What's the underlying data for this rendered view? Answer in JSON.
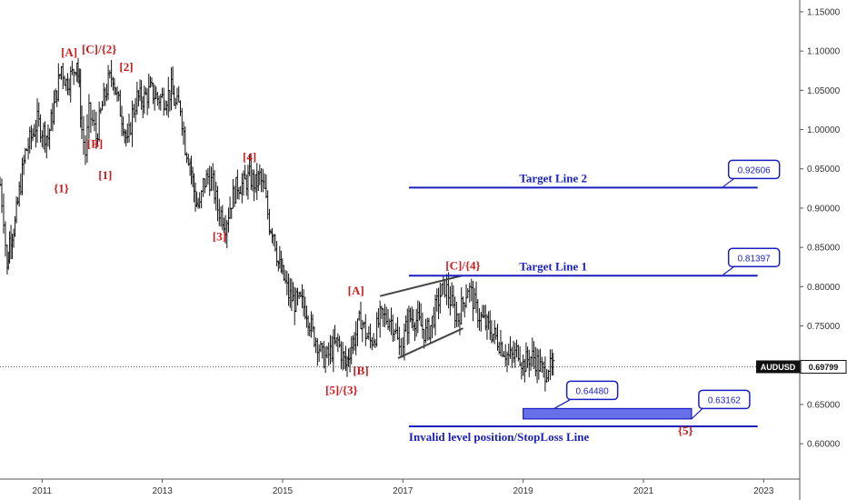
{
  "chart_data": {
    "type": "line",
    "symbol": "AUDUSD",
    "last_price": "0.69799",
    "x_ticks": [
      "2011",
      "2013",
      "2015",
      "2017",
      "2019",
      "2021",
      "2023"
    ],
    "x_tick_values": [
      2011,
      2013,
      2015,
      2017,
      2019,
      2021,
      2023
    ],
    "xlim": [
      2010.3,
      2023.6
    ],
    "y_ticks": [
      "1.15000",
      "1.10000",
      "1.05000",
      "1.00000",
      "0.95000",
      "0.90000",
      "0.85000",
      "0.80000",
      "0.75000",
      "0.70000",
      "0.65000",
      "0.60000"
    ],
    "y_tick_values": [
      1.15,
      1.1,
      1.05,
      1.0,
      0.95,
      0.9,
      0.85,
      0.8,
      0.75,
      0.7,
      0.65,
      0.6
    ],
    "ylim": [
      0.555,
      1.165
    ],
    "grid": false,
    "series": [
      {
        "type": "ohlc-weekly",
        "points": [
          [
            2010.3,
            0.93
          ],
          [
            2010.36,
            0.89
          ],
          [
            2010.42,
            0.82
          ],
          [
            2010.46,
            0.86
          ],
          [
            2010.55,
            0.88
          ],
          [
            2010.62,
            0.92
          ],
          [
            2010.72,
            0.97
          ],
          [
            2010.82,
            0.99
          ],
          [
            2010.92,
            1.01
          ],
          [
            2011.0,
            1.0
          ],
          [
            2011.1,
            0.99
          ],
          [
            2011.2,
            1.03
          ],
          [
            2011.32,
            1.08
          ],
          [
            2011.4,
            1.06
          ],
          [
            2011.5,
            1.07
          ],
          [
            2011.58,
            1.09
          ],
          [
            2011.62,
            1.05
          ],
          [
            2011.66,
            1.0
          ],
          [
            2011.72,
            0.97
          ],
          [
            2011.78,
            1.02
          ],
          [
            2011.84,
            1.01
          ],
          [
            2011.9,
            0.99
          ],
          [
            2011.95,
            1.01
          ],
          [
            2012.0,
            1.03
          ],
          [
            2012.1,
            1.06
          ],
          [
            2012.18,
            1.07
          ],
          [
            2012.25,
            1.04
          ],
          [
            2012.35,
            1.01
          ],
          [
            2012.42,
            0.98
          ],
          [
            2012.5,
            1.02
          ],
          [
            2012.58,
            1.04
          ],
          [
            2012.7,
            1.04
          ],
          [
            2012.8,
            1.05
          ],
          [
            2012.92,
            1.04
          ],
          [
            2013.05,
            1.04
          ],
          [
            2013.15,
            1.05
          ],
          [
            2013.22,
            1.03
          ],
          [
            2013.3,
            1.03
          ],
          [
            2013.38,
            0.98
          ],
          [
            2013.46,
            0.96
          ],
          [
            2013.55,
            0.91
          ],
          [
            2013.62,
            0.9
          ],
          [
            2013.68,
            0.93
          ],
          [
            2013.76,
            0.94
          ],
          [
            2013.84,
            0.93
          ],
          [
            2013.92,
            0.9
          ],
          [
            2014.0,
            0.89
          ],
          [
            2014.05,
            0.88
          ],
          [
            2014.15,
            0.91
          ],
          [
            2014.25,
            0.93
          ],
          [
            2014.35,
            0.93
          ],
          [
            2014.45,
            0.94
          ],
          [
            2014.55,
            0.93
          ],
          [
            2014.62,
            0.94
          ],
          [
            2014.7,
            0.92
          ],
          [
            2014.78,
            0.88
          ],
          [
            2014.85,
            0.87
          ],
          [
            2014.93,
            0.83
          ],
          [
            2015.02,
            0.81
          ],
          [
            2015.1,
            0.79
          ],
          [
            2015.2,
            0.78
          ],
          [
            2015.3,
            0.78
          ],
          [
            2015.4,
            0.77
          ],
          [
            2015.5,
            0.74
          ],
          [
            2015.58,
            0.73
          ],
          [
            2015.66,
            0.71
          ],
          [
            2015.74,
            0.71
          ],
          [
            2015.82,
            0.72
          ],
          [
            2015.92,
            0.73
          ],
          [
            2016.0,
            0.71
          ],
          [
            2016.05,
            0.7
          ],
          [
            2016.12,
            0.72
          ],
          [
            2016.22,
            0.74
          ],
          [
            2016.3,
            0.76
          ],
          [
            2016.38,
            0.74
          ],
          [
            2016.46,
            0.73
          ],
          [
            2016.54,
            0.74
          ],
          [
            2016.62,
            0.76
          ],
          [
            2016.7,
            0.76
          ],
          [
            2016.78,
            0.76
          ],
          [
            2016.86,
            0.75
          ],
          [
            2016.94,
            0.72
          ],
          [
            2017.0,
            0.73
          ],
          [
            2017.1,
            0.76
          ],
          [
            2017.2,
            0.76
          ],
          [
            2017.3,
            0.75
          ],
          [
            2017.38,
            0.74
          ],
          [
            2017.46,
            0.75
          ],
          [
            2017.54,
            0.77
          ],
          [
            2017.62,
            0.79
          ],
          [
            2017.7,
            0.8
          ],
          [
            2017.76,
            0.79
          ],
          [
            2017.84,
            0.77
          ],
          [
            2017.92,
            0.76
          ],
          [
            2018.0,
            0.78
          ],
          [
            2018.08,
            0.8
          ],
          [
            2018.14,
            0.79
          ],
          [
            2018.22,
            0.77
          ],
          [
            2018.3,
            0.76
          ],
          [
            2018.4,
            0.75
          ],
          [
            2018.5,
            0.74
          ],
          [
            2018.6,
            0.73
          ],
          [
            2018.68,
            0.72
          ],
          [
            2018.76,
            0.71
          ],
          [
            2018.84,
            0.71
          ],
          [
            2018.92,
            0.72
          ],
          [
            2019.0,
            0.7
          ],
          [
            2019.1,
            0.71
          ],
          [
            2019.18,
            0.71
          ],
          [
            2019.26,
            0.7
          ],
          [
            2019.34,
            0.69
          ],
          [
            2019.42,
            0.7
          ],
          [
            2019.48,
            0.69
          ],
          [
            2019.52,
            0.698
          ]
        ]
      }
    ],
    "wave_labels": [
      {
        "text": "[A]",
        "x": 2011.45,
        "y": 1.093
      },
      {
        "text": "[C]/{2}",
        "x": 2011.95,
        "y": 1.097
      },
      {
        "text": "[2]",
        "x": 2012.4,
        "y": 1.075
      },
      {
        "text": "[B]",
        "x": 2011.88,
        "y": 0.977
      },
      {
        "text": "{1}",
        "x": 2011.32,
        "y": 0.92
      },
      {
        "text": "[1]",
        "x": 2012.05,
        "y": 0.937
      },
      {
        "text": "[4]",
        "x": 2014.45,
        "y": 0.96
      },
      {
        "text": "[3]",
        "x": 2013.95,
        "y": 0.859
      },
      {
        "text": "[A]",
        "x": 2016.22,
        "y": 0.79
      },
      {
        "text": "[C]/{4}",
        "x": 2018.0,
        "y": 0.822
      },
      {
        "text": "[B]",
        "x": 2016.3,
        "y": 0.688
      },
      {
        "text": "[5]/{3}",
        "x": 2015.98,
        "y": 0.663
      },
      {
        "text": "{5}",
        "x": 2021.7,
        "y": 0.612
      }
    ],
    "horizontal_lines": [
      {
        "label": "Target Line 2",
        "value": 0.92606,
        "callout": "0.92606",
        "x_start": 2017.1,
        "x_end": 2022.9,
        "label_x": 2019.5
      },
      {
        "label": "Target Line 1",
        "value": 0.81397,
        "callout": "0.81397",
        "x_start": 2017.1,
        "x_end": 2022.9,
        "label_x": 2019.5
      },
      {
        "label": "Invalid level position/StopLoss Line",
        "value": 0.6222,
        "callout": "",
        "x_start": 2017.1,
        "x_end": 2022.9,
        "label_x": 2017.1
      }
    ],
    "zone": {
      "top": 0.6448,
      "bottom": 0.6316,
      "x_start": 2019.0,
      "x_end": 2021.8,
      "callout_top": "0.64480",
      "callout_bottom": "0.63162"
    },
    "channel_lines": [
      {
        "x1": 2016.62,
        "y1": 0.788,
        "x2": 2017.98,
        "y2": 0.814
      },
      {
        "x1": 2016.92,
        "y1": 0.709,
        "x2": 2018.0,
        "y2": 0.747
      }
    ],
    "colors": {
      "candles": "#111111",
      "target": "#1a1fc0",
      "wave_label": "#d0191b",
      "zone_fill": "#6670e8",
      "price_tag": "#111111"
    }
  }
}
